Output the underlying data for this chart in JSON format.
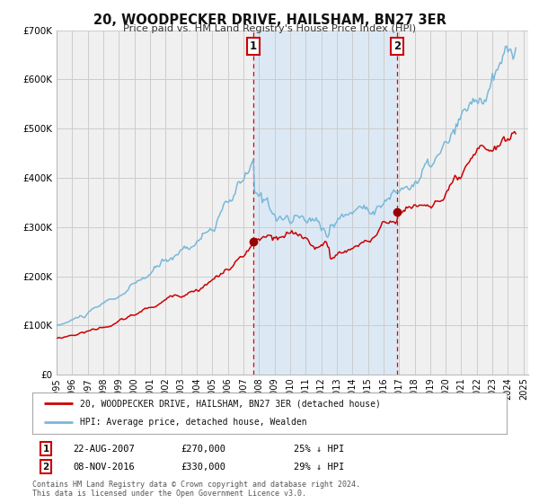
{
  "title": "20, WOODPECKER DRIVE, HAILSHAM, BN27 3ER",
  "subtitle": "Price paid vs. HM Land Registry's House Price Index (HPI)",
  "ylim": [
    0,
    700000
  ],
  "xlim_start": 1995.0,
  "xlim_end": 2025.3,
  "yticks": [
    0,
    100000,
    200000,
    300000,
    400000,
    500000,
    600000,
    700000
  ],
  "ytick_labels": [
    "£0",
    "£100K",
    "£200K",
    "£300K",
    "£400K",
    "£500K",
    "£600K",
    "£700K"
  ],
  "sale1_x": 2007.64,
  "sale1_y": 270000,
  "sale1_label": "1",
  "sale2_x": 2016.86,
  "sale2_y": 330000,
  "sale2_label": "2",
  "shade_color": "#dce9f5",
  "hpi_color": "#7ab8d9",
  "price_color": "#cc0000",
  "marker_color": "#990000",
  "grid_color": "#cccccc",
  "bg_color": "#f0f0f0",
  "legend1": "20, WOODPECKER DRIVE, HAILSHAM, BN27 3ER (detached house)",
  "legend2": "HPI: Average price, detached house, Wealden",
  "note1_label": "1",
  "note1_date": "22-AUG-2007",
  "note1_price": "£270,000",
  "note1_pct": "25% ↓ HPI",
  "note2_label": "2",
  "note2_date": "08-NOV-2016",
  "note2_price": "£330,000",
  "note2_pct": "29% ↓ HPI",
  "footer": "Contains HM Land Registry data © Crown copyright and database right 2024.\nThis data is licensed under the Open Government Licence v3.0."
}
